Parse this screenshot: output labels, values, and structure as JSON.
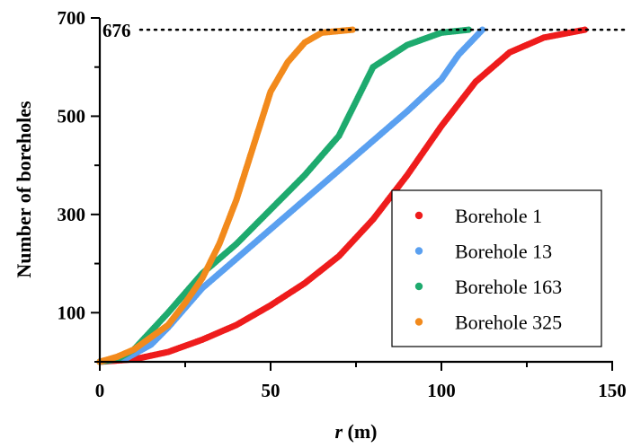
{
  "chart_data": {
    "type": "scatter",
    "title": "",
    "xlabel_italic": "r",
    "xlabel_unit": " (m)",
    "ylabel": "Number of boreholes",
    "xlim": [
      0,
      150
    ],
    "ylim": [
      0,
      700
    ],
    "x_ticks": [
      "0",
      "50",
      "100",
      "150"
    ],
    "y_ticks": [
      "100",
      "300",
      "500",
      "700"
    ],
    "reference_line": {
      "y": 676,
      "label": "676",
      "style": "dotted"
    },
    "legend_position": "center-right",
    "grid": false,
    "series": [
      {
        "name": "Borehole 1",
        "color": "#ee1c1c",
        "points": [
          [
            0,
            0
          ],
          [
            10,
            5
          ],
          [
            20,
            20
          ],
          [
            30,
            45
          ],
          [
            40,
            75
          ],
          [
            50,
            115
          ],
          [
            60,
            160
          ],
          [
            70,
            215
          ],
          [
            80,
            290
          ],
          [
            90,
            380
          ],
          [
            100,
            480
          ],
          [
            110,
            570
          ],
          [
            120,
            630
          ],
          [
            130,
            660
          ],
          [
            142,
            676
          ]
        ]
      },
      {
        "name": "Borehole 13",
        "color": "#5aa0f0",
        "points": [
          [
            0,
            0
          ],
          [
            8,
            8
          ],
          [
            15,
            35
          ],
          [
            20,
            70
          ],
          [
            30,
            150
          ],
          [
            40,
            210
          ],
          [
            50,
            270
          ],
          [
            60,
            330
          ],
          [
            70,
            390
          ],
          [
            80,
            450
          ],
          [
            90,
            510
          ],
          [
            100,
            575
          ],
          [
            105,
            625
          ],
          [
            112,
            676
          ]
        ]
      },
      {
        "name": "Borehole 163",
        "color": "#1eaa6e",
        "points": [
          [
            0,
            0
          ],
          [
            5,
            5
          ],
          [
            10,
            25
          ],
          [
            20,
            100
          ],
          [
            30,
            180
          ],
          [
            40,
            240
          ],
          [
            50,
            310
          ],
          [
            60,
            380
          ],
          [
            70,
            460
          ],
          [
            75,
            530
          ],
          [
            80,
            600
          ],
          [
            90,
            645
          ],
          [
            100,
            670
          ],
          [
            108,
            676
          ]
        ]
      },
      {
        "name": "Borehole 325",
        "color": "#f28a1c",
        "points": [
          [
            0,
            0
          ],
          [
            5,
            10
          ],
          [
            10,
            25
          ],
          [
            20,
            75
          ],
          [
            25,
            120
          ],
          [
            30,
            170
          ],
          [
            35,
            240
          ],
          [
            40,
            330
          ],
          [
            45,
            440
          ],
          [
            50,
            550
          ],
          [
            55,
            610
          ],
          [
            60,
            650
          ],
          [
            65,
            670
          ],
          [
            74,
            676
          ]
        ]
      }
    ]
  }
}
